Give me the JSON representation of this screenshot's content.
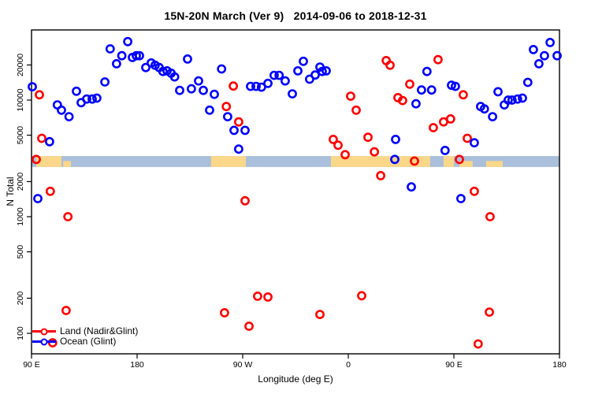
{
  "chart_data": {
    "type": "scatter",
    "title": "15N-20N March (Ver 9)   2014-09-06 to 2018-12-31",
    "xlabel": "Longitude (deg E)",
    "ylabel": "N Total",
    "x_axis": {
      "range_deg": [
        90,
        540
      ],
      "ticks": [
        {
          "deg": 90,
          "label": "90 E"
        },
        {
          "deg": 180,
          "label": "180"
        },
        {
          "deg": 270,
          "label": "90 W"
        },
        {
          "deg": 360,
          "label": "0"
        },
        {
          "deg": 450,
          "label": "90 E"
        },
        {
          "deg": 540,
          "label": "180"
        }
      ]
    },
    "y_axis": {
      "scale": "log10",
      "range": [
        67,
        40000
      ],
      "ticks": [
        100,
        200,
        500,
        1000,
        2000,
        5000,
        10000,
        20000
      ]
    },
    "legend": {
      "position": "bottom-left",
      "entries": [
        {
          "label": "Land (Nadir&Glint)",
          "color": "#FF0000"
        },
        {
          "label": "Ocean (Glint)",
          "color": "#0000FF"
        }
      ]
    },
    "map_band": {
      "description": "15N-20N land/ocean strip drawn across plot",
      "n_range": [
        2670,
        3310
      ],
      "ocean_color": "#A9BFDC",
      "land_color": "#FBD78A",
      "land_segments_deg": [
        {
          "from": 94.0,
          "to": 115.5
        },
        {
          "from": 117.0,
          "to": 123.6,
          "partial": true
        },
        {
          "from": 243.0,
          "to": 272.7
        },
        {
          "from": 345.2,
          "to": 429.8
        },
        {
          "from": 441.2,
          "to": 450.0
        },
        {
          "from": 454.7,
          "to": 466.0,
          "partial": true
        },
        {
          "from": 477.5,
          "to": 491.6,
          "partial": true
        }
      ]
    },
    "series": [
      {
        "name": "Land (Nadir&Glint)",
        "color": "#FF0000",
        "points": [
          [
            96.7,
            11100
          ],
          [
            98.7,
            4700
          ],
          [
            94,
            3100
          ],
          [
            106,
            1650
          ],
          [
            108,
            83
          ],
          [
            119.5,
            157
          ],
          [
            121,
            1000
          ],
          [
            254.5,
            150
          ],
          [
            256,
            8800
          ],
          [
            262,
            13200
          ],
          [
            266.6,
            6500
          ],
          [
            272,
            1370
          ],
          [
            275.4,
            115
          ],
          [
            282.7,
            208
          ],
          [
            291.5,
            205
          ],
          [
            335.8,
            145
          ],
          [
            347.2,
            4600
          ],
          [
            351.3,
            4100
          ],
          [
            357.3,
            3400
          ],
          [
            362,
            10800
          ],
          [
            366.7,
            8200
          ],
          [
            371.4,
            210
          ],
          [
            376.8,
            4800
          ],
          [
            382.2,
            3600
          ],
          [
            387.6,
            2250
          ],
          [
            392.3,
            21800
          ],
          [
            395.6,
            19900
          ],
          [
            402.3,
            10500
          ],
          [
            406.3,
            9900
          ],
          [
            412.4,
            13700
          ],
          [
            416.4,
            3000
          ],
          [
            432.5,
            5800
          ],
          [
            436.5,
            22200
          ],
          [
            441.2,
            6500
          ],
          [
            447.2,
            6900
          ],
          [
            454.7,
            3100
          ],
          [
            458,
            11100
          ],
          [
            461.4,
            4700
          ],
          [
            467.4,
            1650
          ],
          [
            470.7,
            81
          ],
          [
            480.2,
            152
          ],
          [
            480.8,
            1000
          ]
        ]
      },
      {
        "name": "Ocean (Glint)",
        "color": "#0000FF",
        "points": [
          [
            90.7,
            13000
          ],
          [
            95.4,
            1430
          ],
          [
            105.4,
            4400
          ],
          [
            112,
            9100
          ],
          [
            115.5,
            8200
          ],
          [
            122,
            7200
          ],
          [
            128.3,
            11900
          ],
          [
            132.3,
            9500
          ],
          [
            137,
            10200
          ],
          [
            141.7,
            10200
          ],
          [
            145.7,
            10400
          ],
          [
            152.5,
            14300
          ],
          [
            157,
            27500
          ],
          [
            162.5,
            20500
          ],
          [
            167,
            24000
          ],
          [
            172,
            31700
          ],
          [
            176,
            23200
          ],
          [
            179.3,
            24000
          ],
          [
            182,
            24000
          ],
          [
            187.4,
            19000
          ],
          [
            192,
            20800
          ],
          [
            195.4,
            19900
          ],
          [
            198.8,
            19000
          ],
          [
            202,
            17600
          ],
          [
            205.5,
            17800
          ],
          [
            209,
            17000
          ],
          [
            212,
            15800
          ],
          [
            216.3,
            12100
          ],
          [
            223,
            22500
          ],
          [
            226.3,
            12500
          ],
          [
            232.4,
            14600
          ],
          [
            236.4,
            12100
          ],
          [
            241.8,
            8200
          ],
          [
            245.8,
            11200
          ],
          [
            252,
            18500
          ],
          [
            257.2,
            7200
          ],
          [
            262.6,
            5500
          ],
          [
            266.6,
            3800
          ],
          [
            272,
            5500
          ],
          [
            276.7,
            13100
          ],
          [
            281.4,
            13100
          ],
          [
            286,
            12900
          ],
          [
            291.5,
            13900
          ],
          [
            296.8,
            16300
          ],
          [
            301,
            16300
          ],
          [
            306.2,
            14600
          ],
          [
            312.3,
            11300
          ],
          [
            317,
            17800
          ],
          [
            321.7,
            21500
          ],
          [
            327,
            15100
          ],
          [
            331.8,
            16400
          ],
          [
            335.8,
            19200
          ],
          [
            337.8,
            17600
          ],
          [
            341.2,
            17800
          ],
          [
            400.3,
            4600
          ],
          [
            399.6,
            3100
          ],
          [
            413.7,
            1800
          ],
          [
            417.7,
            9300
          ],
          [
            422.4,
            12200
          ],
          [
            427,
            17600
          ],
          [
            431,
            12200
          ],
          [
            442.5,
            3700
          ],
          [
            448,
            13400
          ],
          [
            451.3,
            13100
          ],
          [
            456,
            1430
          ],
          [
            467.4,
            4300
          ],
          [
            472.8,
            8800
          ],
          [
            476,
            8400
          ],
          [
            483,
            7200
          ],
          [
            487.6,
            11800
          ],
          [
            493,
            9100
          ],
          [
            496.3,
            10000
          ],
          [
            499.6,
            10000
          ],
          [
            504.3,
            10200
          ],
          [
            508.4,
            10400
          ],
          [
            513,
            14200
          ],
          [
            517.8,
            27100
          ],
          [
            522.5,
            20500
          ],
          [
            527.2,
            24000
          ],
          [
            532,
            31200
          ],
          [
            538,
            24000
          ]
        ]
      }
    ]
  }
}
